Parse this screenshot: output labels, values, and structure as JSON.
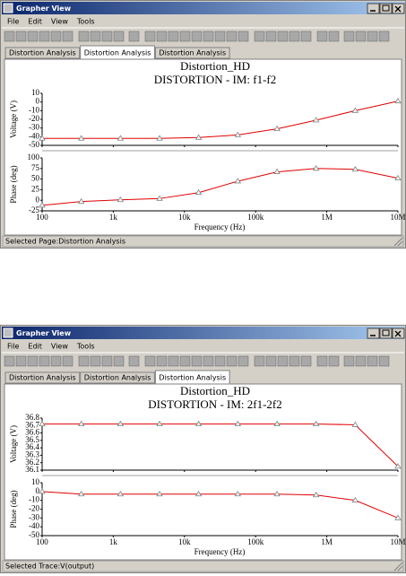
{
  "windows": [
    {
      "title": "Grapher View",
      "menu": [
        "File",
        "Edit",
        "View",
        "Tools"
      ],
      "tabs": [
        "Distortion Analysis",
        "Distortion Analysis",
        "Distortion Analysis"
      ],
      "active_tab": 1,
      "status": "Selected Page:Distortion Analysis",
      "chart_data": {
        "type": "line",
        "title": "Distortion_HD",
        "subtitle": "DISTORTION - IM: f1-f2",
        "xlabel": "Frequency (Hz)",
        "xscale": "log",
        "xlim": [
          100,
          10000000
        ],
        "xticks": [
          100,
          {
            "value": 1000,
            "label": "1k"
          },
          {
            "value": 10000,
            "label": "10k"
          },
          {
            "value": 100000,
            "label": "100k"
          },
          {
            "value": 1000000,
            "label": "1M"
          },
          {
            "value": 10000000,
            "label": "10M"
          }
        ],
        "x": [
          100,
          355,
          1260,
          4470,
          15800,
          56200,
          200000,
          708000,
          2510000,
          10000000
        ],
        "marker": "triangle",
        "panels": [
          {
            "ylabel": "Voltage (V)",
            "ylim": [
              -50,
              10
            ],
            "yticks": [
              10,
              0,
              -10,
              -20,
              -30,
              -40,
              -50
            ],
            "series": [
              {
                "color": "#e00000",
                "values": [
                  -42,
                  -42,
                  -42,
                  -42,
                  -41,
                  -38,
                  -31,
                  -21,
                  -10,
                  1
                ]
              }
            ]
          },
          {
            "ylabel": "Phase (deg)",
            "ylim": [
              -25,
              100
            ],
            "yticks": [
              100,
              75,
              50,
              25,
              0,
              -25
            ],
            "series": [
              {
                "color": "#e00000",
                "values": [
                  -12,
                  -3,
                  1,
                  4,
                  18,
                  45,
                  67,
                  75,
                  73,
                  52
                ]
              }
            ]
          }
        ]
      }
    },
    {
      "title": "Grapher View",
      "menu": [
        "File",
        "Edit",
        "View",
        "Tools"
      ],
      "tabs": [
        "Distortion Analysis",
        "Distortion Analysis",
        "Distortion Analysis"
      ],
      "active_tab": 2,
      "status": "Selected Trace:V(output)",
      "chart_data": {
        "type": "line",
        "title": "Distortion_HD",
        "subtitle": "DISTORTION - IM: 2f1-2f2",
        "xlabel": "Frequency (Hz)",
        "xscale": "log",
        "xlim": [
          100,
          10000000
        ],
        "xticks": [
          100,
          {
            "value": 1000,
            "label": "1k"
          },
          {
            "value": 10000,
            "label": "10k"
          },
          {
            "value": 100000,
            "label": "100k"
          },
          {
            "value": 1000000,
            "label": "1M"
          },
          {
            "value": 10000000,
            "label": "10M"
          }
        ],
        "x": [
          100,
          355,
          1260,
          4470,
          15800,
          56200,
          200000,
          708000,
          2510000,
          10000000
        ],
        "marker": "triangle",
        "panels": [
          {
            "ylabel": "Voltage (V)",
            "ylim": [
              36.1,
              36.8
            ],
            "yticks": [
              36.8,
              36.7,
              36.6,
              36.5,
              36.4,
              36.3,
              36.2,
              36.1
            ],
            "series": [
              {
                "color": "#e00000",
                "values": [
                  36.72,
                  36.72,
                  36.72,
                  36.72,
                  36.72,
                  36.72,
                  36.72,
                  36.72,
                  36.71,
                  36.15
                ]
              }
            ]
          },
          {
            "ylabel": "Phase (deg)",
            "ylim": [
              -50,
              10
            ],
            "yticks": [
              10,
              0,
              -10,
              -20,
              -30,
              -40,
              -50
            ],
            "series": [
              {
                "color": "#e00000",
                "values": [
                  0,
                  -3,
                  -3,
                  -3,
                  -3,
                  -3,
                  -3,
                  -4,
                  -10,
                  -30
                ]
              }
            ]
          }
        ]
      }
    }
  ]
}
